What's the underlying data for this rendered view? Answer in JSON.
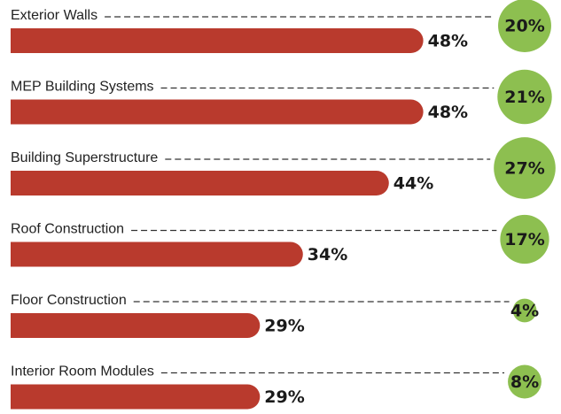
{
  "chart_data": {
    "type": "bar",
    "categories": [
      "Exterior Walls",
      "MEP Building Systems",
      "Building Superstructure",
      "Roof Construction",
      "Floor Construction",
      "Interior Room Modules"
    ],
    "series": [
      {
        "color": "#b93a2d",
        "values": [
          48,
          48,
          44,
          34,
          29,
          29
        ],
        "value_labels": [
          "48%",
          "48%",
          "44%",
          "34%",
          "29%",
          "29%"
        ]
      },
      {
        "color": "#8dbf50",
        "values": [
          20,
          21,
          27,
          17,
          4,
          8
        ],
        "value_labels": [
          "20%",
          "21%",
          "27%",
          "17%",
          "4%",
          "8%"
        ]
      }
    ]
  }
}
